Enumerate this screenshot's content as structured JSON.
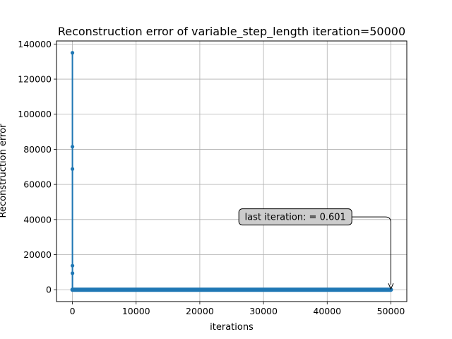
{
  "chart_data": {
    "type": "line",
    "title": "Reconstruction error of variable_step_length iteration=50000",
    "xlabel": "iterations",
    "ylabel": "Reconstruction error",
    "xlim": [
      -2500,
      52500
    ],
    "ylim": [
      -6750,
      141750
    ],
    "xticks": [
      0,
      10000,
      20000,
      30000,
      40000,
      50000
    ],
    "xtick_labels": [
      "0",
      "10000",
      "20000",
      "30000",
      "40000",
      "50000"
    ],
    "yticks": [
      0,
      20000,
      40000,
      60000,
      80000,
      100000,
      120000,
      140000
    ],
    "ytick_labels": [
      "0",
      "20000",
      "40000",
      "60000",
      "80000",
      "100000",
      "120000",
      "140000"
    ],
    "grid": true,
    "color": "#1f77b4",
    "series": [
      {
        "early_points": [
          [
            1,
            135000
          ],
          [
            2,
            0
          ],
          [
            3,
            81500
          ],
          [
            4,
            0
          ],
          [
            5,
            68800
          ],
          [
            6,
            0
          ],
          [
            7,
            13700
          ],
          [
            8,
            0
          ],
          [
            9,
            9400
          ],
          [
            10,
            0
          ]
        ],
        "plateau": {
          "x_start": 10,
          "x_end": 50000,
          "y": 0.601
        }
      }
    ],
    "annotation": {
      "text": "last iteration: = 0.601",
      "point": [
        50000,
        0.601
      ],
      "text_position": [
        35000,
        41500
      ]
    }
  }
}
